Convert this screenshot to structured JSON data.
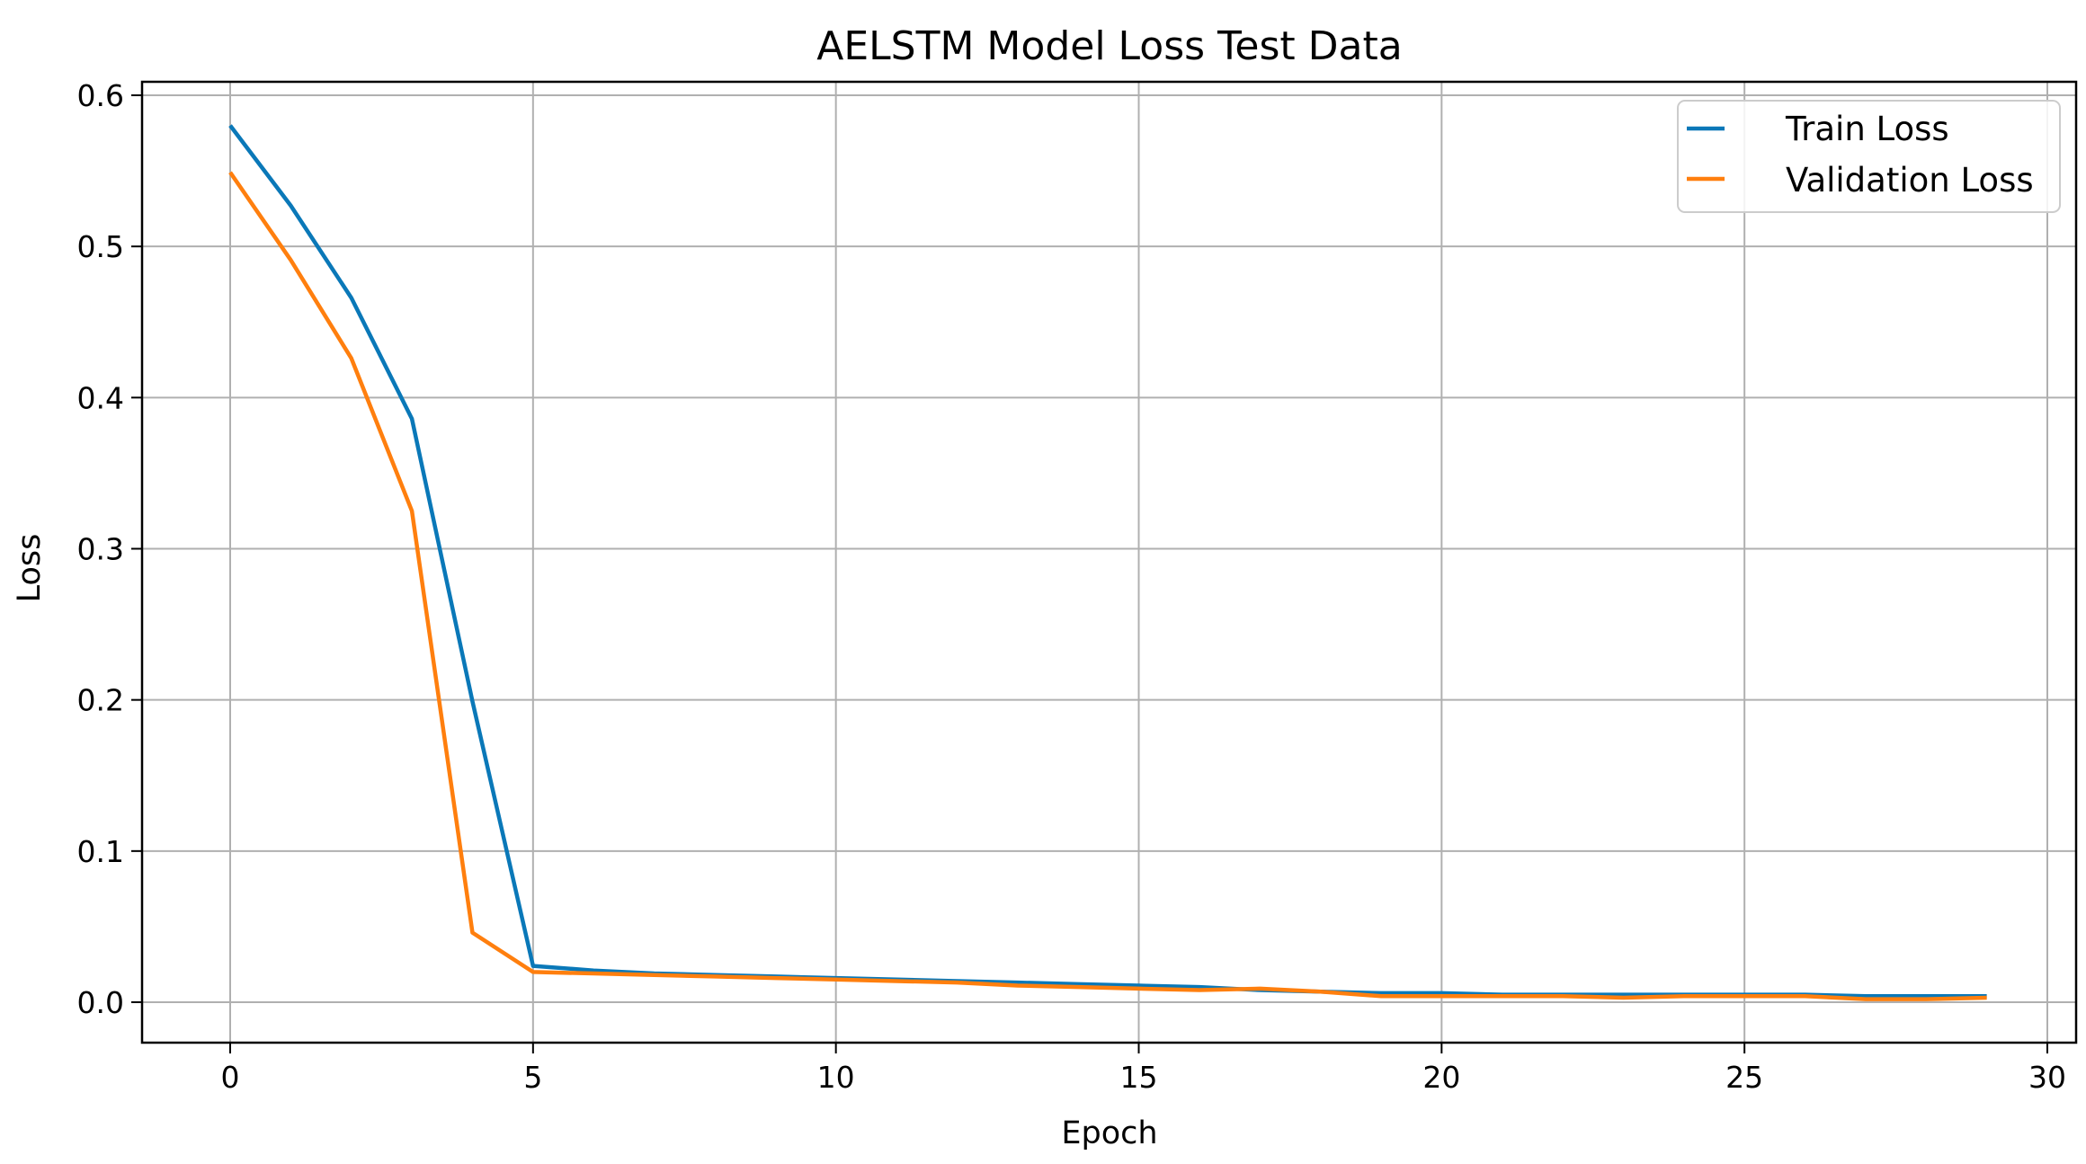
{
  "chart_data": {
    "type": "line",
    "title": "AELSTM Model Loss Test Data",
    "xlabel": "Epoch",
    "ylabel": "Loss",
    "xlim": [
      -1.45,
      30.5
    ],
    "ylim": [
      -0.028,
      0.609
    ],
    "xticks": [
      0,
      5,
      10,
      15,
      20,
      25,
      30
    ],
    "yticks": [
      0.0,
      0.1,
      0.2,
      0.3,
      0.4,
      0.5,
      0.6
    ],
    "xtick_labels": [
      "0",
      "5",
      "10",
      "15",
      "20",
      "25",
      "30"
    ],
    "ytick_labels": [
      "0.0",
      "0.1",
      "0.2",
      "0.3",
      "0.4",
      "0.5",
      "0.6"
    ],
    "grid": true,
    "legend_position": "upper right",
    "x": [
      0,
      1,
      2,
      3,
      4,
      5,
      6,
      7,
      8,
      9,
      10,
      11,
      12,
      13,
      14,
      15,
      16,
      17,
      18,
      19,
      20,
      21,
      22,
      23,
      24,
      25,
      26,
      27,
      28,
      29
    ],
    "series": [
      {
        "name": "Train Loss",
        "color": "#0a78b8",
        "values": [
          0.58,
          0.527,
          0.466,
          0.386,
          0.199,
          0.024,
          0.021,
          0.019,
          0.018,
          0.017,
          0.016,
          0.015,
          0.014,
          0.013,
          0.012,
          0.011,
          0.01,
          0.008,
          0.007,
          0.006,
          0.006,
          0.005,
          0.005,
          0.005,
          0.005,
          0.005,
          0.005,
          0.004,
          0.004,
          0.004
        ]
      },
      {
        "name": "Validation Loss",
        "color": "#ff7f0e",
        "values": [
          0.549,
          0.491,
          0.426,
          0.325,
          0.046,
          0.02,
          0.019,
          0.018,
          0.017,
          0.016,
          0.015,
          0.014,
          0.013,
          0.011,
          0.01,
          0.009,
          0.008,
          0.009,
          0.007,
          0.004,
          0.004,
          0.004,
          0.004,
          0.003,
          0.004,
          0.004,
          0.004,
          0.002,
          0.002,
          0.003
        ]
      }
    ]
  }
}
